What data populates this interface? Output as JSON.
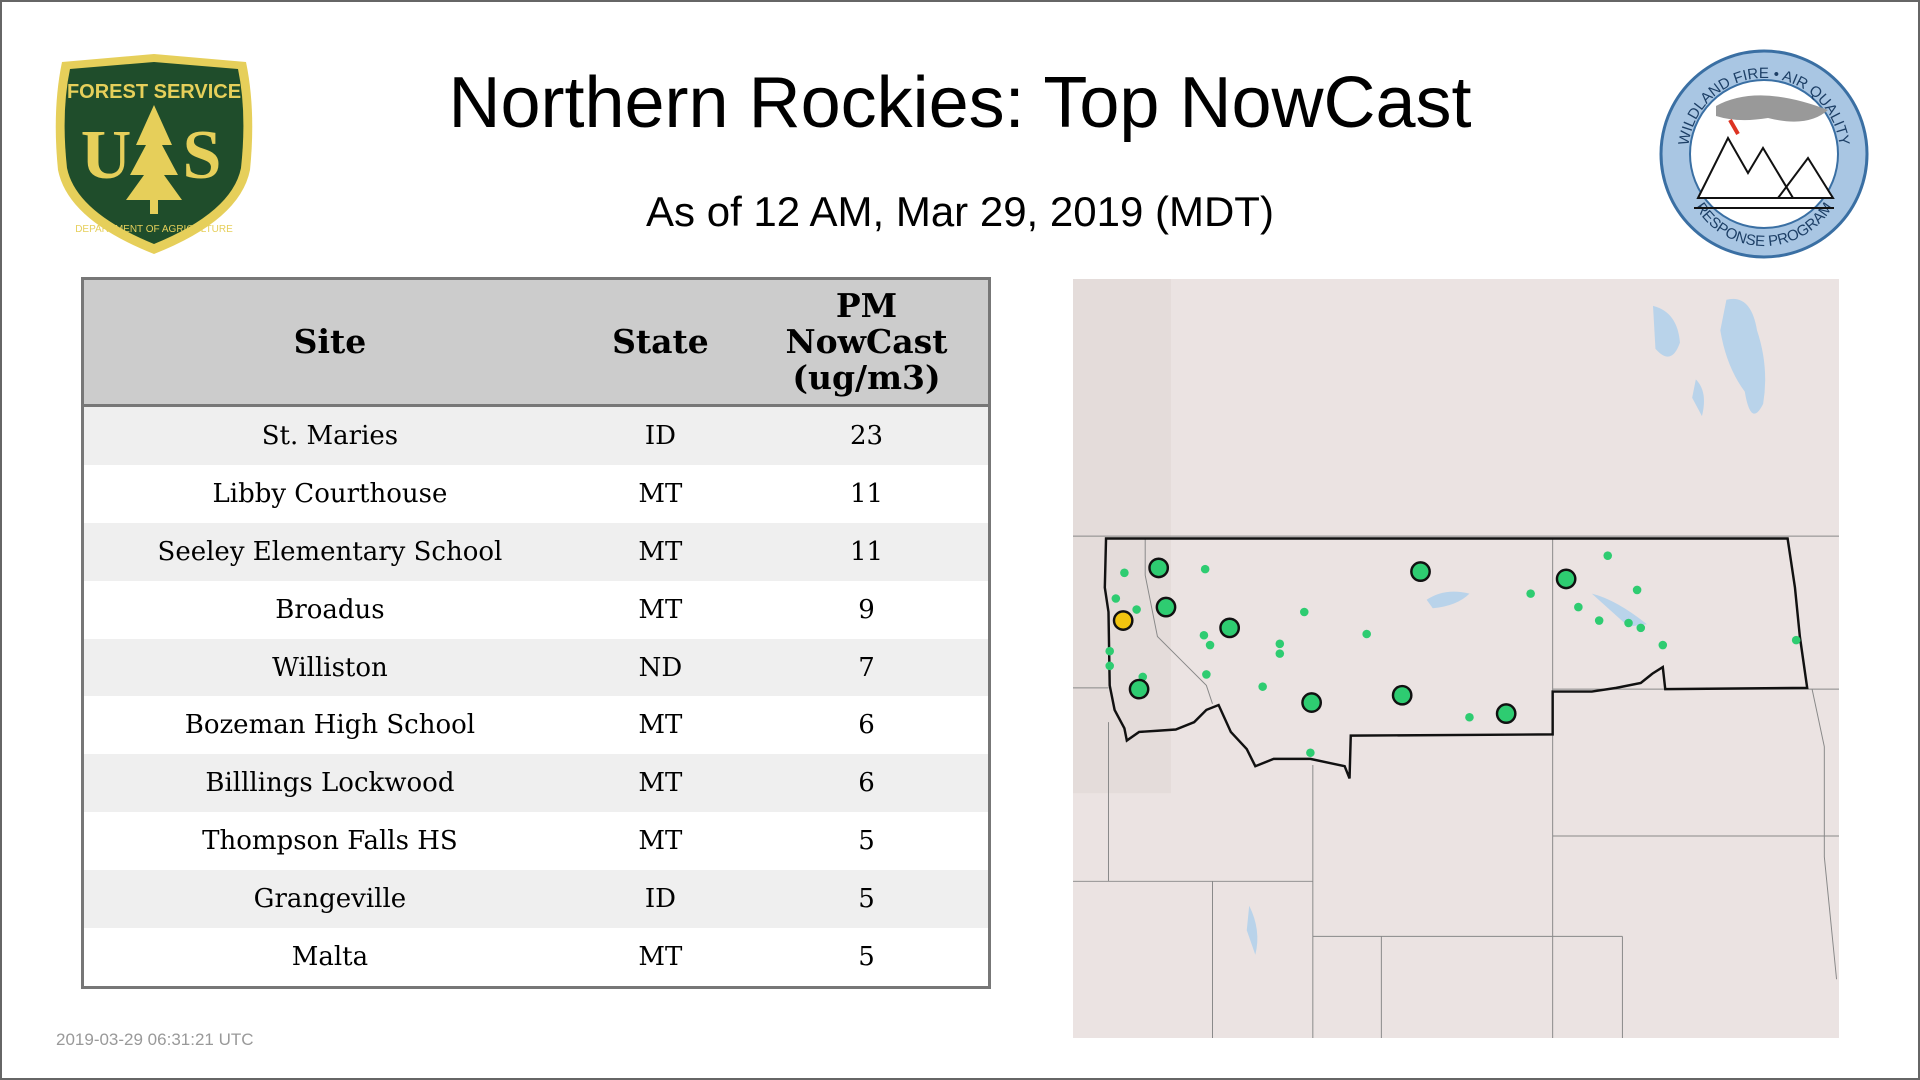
{
  "header": {
    "title": "Northern Rockies: Top NowCast",
    "subtitle": "As of 12 AM, Mar 29, 2019 (MDT)"
  },
  "logos": {
    "left": {
      "top_text": "FOREST SERVICE",
      "letters": "U S",
      "bottom_text": "DEPARTMENT OF AGRICULTURE"
    },
    "right": {
      "top_text": "WILDLAND FIRE • AIR QUALITY",
      "bottom_text": "RESPONSE PROGRAM"
    }
  },
  "table": {
    "headers": [
      "Site",
      "State",
      "PM NowCast (ug/m3)"
    ],
    "header_lines": [
      "PM",
      "NowCast",
      "(ug/m3)"
    ],
    "rows": [
      [
        "St. Maries",
        "ID",
        "23"
      ],
      [
        "Libby Courthouse",
        "MT",
        "11"
      ],
      [
        "Seeley Elementary School",
        "MT",
        "11"
      ],
      [
        "Broadus",
        "MT",
        "9"
      ],
      [
        "Williston",
        "ND",
        "7"
      ],
      [
        "Bozeman High School",
        "MT",
        "6"
      ],
      [
        "Billlings Lockwood",
        "MT",
        "6"
      ],
      [
        "Thompson Falls HS",
        "MT",
        "5"
      ],
      [
        "Grangeville",
        "ID",
        "5"
      ],
      [
        "Malta",
        "MT",
        "5"
      ]
    ]
  },
  "map": {
    "colors": {
      "good": "#2ecc71",
      "moderate": "#f1c40f",
      "outline": "#111111",
      "water": "#b9d3ea",
      "land": "#ebe3e2"
    }
  },
  "footer": {
    "timestamp": "2019-03-29 06:31:21 UTC"
  }
}
